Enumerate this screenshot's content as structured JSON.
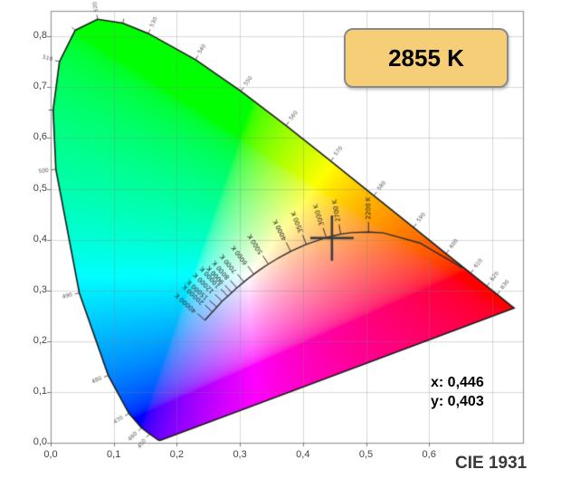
{
  "badge": {
    "label": "2855 K",
    "bg": "#f6ce78",
    "border": "#8a8a8a"
  },
  "marker": {
    "readout_x": "x: 0,446",
    "readout_y": "y: 0,403"
  },
  "footer": {
    "label": "CIE 1931"
  },
  "colors": {
    "grid": "rgba(128,128,128,0.30)",
    "plot_border": "#999999",
    "axis_tick": "#777777",
    "locus_outline": "#1c1c1c",
    "planck_curve": "#2b2b2b",
    "crosshair": "#3d3d3d",
    "wavelength_label": "#555555",
    "cct_label": "#1a1a1a"
  },
  "chart_data": {
    "type": "chromaticity-diagram",
    "title": "2855 K",
    "footer": "CIE 1931",
    "grid": true,
    "x_axis": {
      "tick_labels": [
        "0,0",
        "0,1",
        "0,2",
        "0,3",
        "0,4",
        "0,5",
        "0,6"
      ],
      "tick_values": [
        0,
        0.1,
        0.2,
        0.3,
        0.4,
        0.5,
        0.6
      ],
      "grid_values": [
        0.1,
        0.2,
        0.3,
        0.4,
        0.5,
        0.6,
        0.7
      ],
      "range": [
        0,
        0.749
      ]
    },
    "y_axis": {
      "tick_labels": [
        "0,0",
        "0,1",
        "0,2",
        "0,3",
        "0,4",
        "0,5",
        "0,6",
        "0,7",
        "0,8"
      ],
      "tick_values": [
        0,
        0.1,
        0.2,
        0.3,
        0.4,
        0.5,
        0.6,
        0.7,
        0.8
      ],
      "grid_values": [
        0.1,
        0.2,
        0.3,
        0.4,
        0.5,
        0.6,
        0.7,
        0.8
      ],
      "range": [
        0,
        0.85
      ]
    },
    "marker_point": {
      "x": 0.446,
      "y": 0.403
    },
    "spectral_locus": [
      [
        380,
        0.1741,
        0.005
      ],
      [
        390,
        0.1738,
        0.0049
      ],
      [
        400,
        0.1733,
        0.0048
      ],
      [
        410,
        0.1726,
        0.0048
      ],
      [
        420,
        0.1714,
        0.0051
      ],
      [
        430,
        0.1689,
        0.0069
      ],
      [
        440,
        0.1644,
        0.0109
      ],
      [
        450,
        0.1566,
        0.0177
      ],
      [
        460,
        0.144,
        0.0297
      ],
      [
        470,
        0.1241,
        0.0578
      ],
      [
        480,
        0.0913,
        0.1327
      ],
      [
        490,
        0.0454,
        0.295
      ],
      [
        500,
        0.0082,
        0.5384
      ],
      [
        505,
        0.0039,
        0.6548
      ],
      [
        510,
        0.0139,
        0.7502
      ],
      [
        515,
        0.0389,
        0.812
      ],
      [
        520,
        0.0743,
        0.8338
      ],
      [
        525,
        0.1142,
        0.8262
      ],
      [
        530,
        0.1547,
        0.8059
      ],
      [
        540,
        0.2296,
        0.7543
      ],
      [
        550,
        0.3016,
        0.6923
      ],
      [
        560,
        0.3731,
        0.6245
      ],
      [
        570,
        0.4441,
        0.5547
      ],
      [
        580,
        0.5125,
        0.4866
      ],
      [
        590,
        0.5752,
        0.4242
      ],
      [
        600,
        0.627,
        0.3725
      ],
      [
        610,
        0.6658,
        0.334
      ],
      [
        620,
        0.6915,
        0.3083
      ],
      [
        630,
        0.7079,
        0.292
      ],
      [
        640,
        0.719,
        0.2809
      ],
      [
        650,
        0.726,
        0.274
      ],
      [
        660,
        0.73,
        0.27
      ],
      [
        680,
        0.7334,
        0.2666
      ],
      [
        700,
        0.7347,
        0.2653
      ]
    ],
    "wavelength_ticks": [
      450,
      460,
      470,
      480,
      490,
      500,
      505,
      510,
      515,
      520,
      525,
      530,
      540,
      550,
      560,
      570,
      580,
      590,
      600,
      610,
      620,
      630
    ],
    "wavelength_labels": [
      450,
      460,
      470,
      480,
      490,
      500,
      510,
      520,
      530,
      540,
      550,
      560,
      570,
      580,
      590,
      600,
      610,
      620,
      630
    ],
    "planckian_locus": [
      [
        40000,
        0.2445,
        0.2412
      ],
      [
        30000,
        0.2489,
        0.2472
      ],
      [
        25000,
        0.2522,
        0.2519
      ],
      [
        20000,
        0.2565,
        0.2577
      ],
      [
        15000,
        0.2634,
        0.2671
      ],
      [
        12000,
        0.2717,
        0.2784
      ],
      [
        10000,
        0.2807,
        0.2884
      ],
      [
        9000,
        0.2869,
        0.2956
      ],
      [
        8000,
        0.2952,
        0.3048
      ],
      [
        7000,
        0.3064,
        0.3166
      ],
      [
        6500,
        0.3135,
        0.3237
      ],
      [
        6000,
        0.3221,
        0.3318
      ],
      [
        5500,
        0.3324,
        0.341
      ],
      [
        5000,
        0.3451,
        0.3516
      ],
      [
        4500,
        0.3608,
        0.3636
      ],
      [
        4000,
        0.3805,
        0.3768
      ],
      [
        3500,
        0.4053,
        0.3907
      ],
      [
        3000,
        0.4369,
        0.4041
      ],
      [
        2855,
        0.4476,
        0.4074
      ],
      [
        2700,
        0.4599,
        0.4106
      ],
      [
        2500,
        0.477,
        0.4137
      ],
      [
        2200,
        0.504,
        0.415
      ],
      [
        2000,
        0.5267,
        0.4133
      ],
      [
        1800,
        0.5503,
        0.4052
      ],
      [
        1500,
        0.5857,
        0.3931
      ],
      [
        1200,
        0.626,
        0.3639
      ],
      [
        1000,
        0.6528,
        0.3444
      ]
    ],
    "cct_labels": [
      {
        "K": 2200,
        "label": "2200 K"
      },
      {
        "K": 2700,
        "label": "2700 K"
      },
      {
        "K": 3000,
        "label": "3000 K"
      },
      {
        "K": 3500,
        "label": "3500 K"
      },
      {
        "K": 4000,
        "label": "4000 K"
      },
      {
        "K": 5000,
        "label": "5000 K"
      },
      {
        "K": 6000,
        "label": "6000 K"
      },
      {
        "K": 7000,
        "label": "7000 K"
      },
      {
        "K": 8000,
        "label": "8000 K"
      },
      {
        "K": 9000,
        "label": "9000 K"
      },
      {
        "K": 10000,
        "label": "10000 K"
      },
      {
        "K": 12000,
        "label": "12000 K"
      },
      {
        "K": 15000,
        "label": "15000 K"
      },
      {
        "K": 20000,
        "label": "20000 K"
      },
      {
        "K": 40000,
        "label": "40000 K"
      }
    ]
  }
}
